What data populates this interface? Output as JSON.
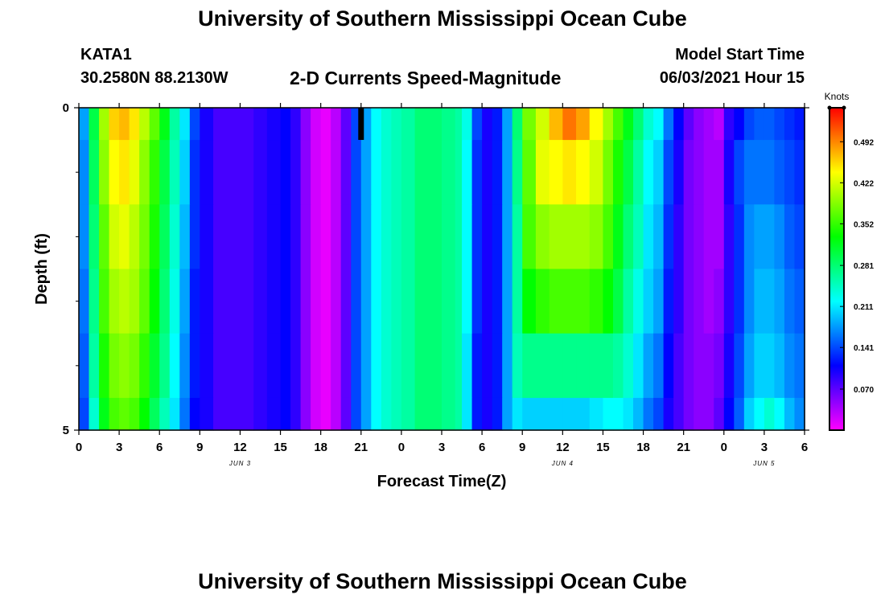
{
  "header": {
    "title": "University of Southern Mississippi Ocean Cube",
    "station": "KATA1",
    "coordinates": "30.2580N  88.2130W",
    "chart_title": "2-D Currents Speed-Magnitude",
    "model_start_label": "Model Start Time",
    "model_start_value": "06/03/2021 Hour 15"
  },
  "footer": {
    "title": "University of Southern Mississippi Ocean Cube"
  },
  "chart_data": {
    "type": "heatmap",
    "title": "2-D Currents Speed-Magnitude",
    "xlabel": "Forecast Time(Z)",
    "ylabel": "Depth (ft)",
    "x_hours_from_jun3_00z": [
      0,
      0.75,
      1.5,
      2.25,
      3,
      3.75,
      4.5,
      5.25,
      6,
      6.75,
      7.5,
      8.25,
      9,
      10,
      11,
      12,
      13,
      14,
      15,
      15.75,
      16.5,
      17.25,
      18,
      18.75,
      19.5,
      20.25,
      21,
      21.75,
      22.5,
      23.25,
      24,
      25,
      26,
      27,
      28,
      28.5,
      29.25,
      30,
      30.75,
      31.5,
      32.25,
      33,
      34,
      35,
      36,
      37,
      38,
      39,
      39.75,
      40.5,
      41.25,
      42,
      42.75,
      43.5,
      44.25,
      45,
      45.75,
      46.5,
      47.25,
      48,
      48.75,
      49.5,
      50.25,
      51,
      51.75,
      52.5,
      53.25,
      54
    ],
    "x_range": [
      0,
      54
    ],
    "x_ticks": [
      0,
      3,
      6,
      9,
      12,
      15,
      18,
      21,
      24,
      27,
      30,
      33,
      36,
      39,
      42,
      45,
      48,
      51,
      54
    ],
    "x_tick_labels": [
      "0",
      "3",
      "6",
      "9",
      "12",
      "15",
      "18",
      "21",
      "0",
      "3",
      "6",
      "9",
      "12",
      "15",
      "18",
      "21",
      "0",
      "3",
      "6"
    ],
    "day_labels": [
      {
        "label": "JUN 3",
        "hour": 12
      },
      {
        "label": "JUN 4",
        "hour": 36
      },
      {
        "label": "JUN 5",
        "hour": 51
      }
    ],
    "y_range": [
      0,
      5
    ],
    "y_ticks": [
      0,
      5
    ],
    "y_minor_ticks": [
      1,
      2,
      3,
      4
    ],
    "depth_levels": [
      0,
      0.5,
      1.5,
      2.5,
      3.5,
      4.5
    ],
    "speed_knots": [
      [
        0.18,
        0.3,
        0.4,
        0.46,
        0.47,
        0.45,
        0.41,
        0.37,
        0.32,
        0.26,
        0.21,
        0.14,
        0.1,
        0.08,
        0.08,
        0.08,
        0.09,
        0.1,
        0.11,
        0.09,
        0.05,
        0.02,
        0.01,
        0.03,
        0.07,
        0.14,
        0.18,
        0.22,
        0.24,
        0.25,
        0.26,
        0.28,
        0.28,
        0.27,
        0.26,
        0.23,
        0.14,
        0.1,
        0.12,
        0.18,
        0.28,
        0.38,
        0.42,
        0.47,
        0.5,
        0.48,
        0.44,
        0.4,
        0.36,
        0.32,
        0.28,
        0.24,
        0.22,
        0.16,
        0.11,
        0.07,
        0.05,
        0.04,
        0.03,
        0.09,
        0.11,
        0.14,
        0.15,
        0.15,
        0.14,
        0.13,
        0.12,
        0.11
      ],
      [
        0.17,
        0.29,
        0.39,
        0.44,
        0.45,
        0.43,
        0.39,
        0.35,
        0.3,
        0.25,
        0.2,
        0.13,
        0.1,
        0.08,
        0.08,
        0.08,
        0.09,
        0.1,
        0.11,
        0.09,
        0.05,
        0.02,
        0.01,
        0.03,
        0.07,
        0.14,
        0.18,
        0.22,
        0.24,
        0.25,
        0.26,
        0.28,
        0.28,
        0.27,
        0.26,
        0.22,
        0.13,
        0.1,
        0.12,
        0.18,
        0.27,
        0.37,
        0.43,
        0.44,
        0.45,
        0.44,
        0.42,
        0.38,
        0.34,
        0.3,
        0.26,
        0.22,
        0.2,
        0.14,
        0.1,
        0.06,
        0.05,
        0.04,
        0.04,
        0.1,
        0.14,
        0.16,
        0.16,
        0.16,
        0.15,
        0.14,
        0.13,
        0.12
      ],
      [
        0.17,
        0.28,
        0.37,
        0.42,
        0.43,
        0.41,
        0.38,
        0.34,
        0.29,
        0.24,
        0.19,
        0.13,
        0.1,
        0.08,
        0.08,
        0.08,
        0.09,
        0.1,
        0.11,
        0.09,
        0.05,
        0.02,
        0.01,
        0.03,
        0.07,
        0.14,
        0.18,
        0.22,
        0.24,
        0.25,
        0.26,
        0.28,
        0.28,
        0.27,
        0.26,
        0.22,
        0.13,
        0.1,
        0.12,
        0.18,
        0.26,
        0.36,
        0.39,
        0.4,
        0.4,
        0.4,
        0.39,
        0.36,
        0.32,
        0.28,
        0.25,
        0.21,
        0.19,
        0.13,
        0.09,
        0.06,
        0.05,
        0.04,
        0.04,
        0.09,
        0.13,
        0.17,
        0.18,
        0.18,
        0.17,
        0.15,
        0.14,
        0.13
      ],
      [
        0.16,
        0.27,
        0.36,
        0.4,
        0.41,
        0.4,
        0.37,
        0.33,
        0.28,
        0.23,
        0.18,
        0.12,
        0.1,
        0.08,
        0.08,
        0.08,
        0.09,
        0.1,
        0.11,
        0.09,
        0.05,
        0.02,
        0.01,
        0.03,
        0.07,
        0.14,
        0.18,
        0.22,
        0.24,
        0.25,
        0.26,
        0.28,
        0.28,
        0.27,
        0.26,
        0.22,
        0.13,
        0.1,
        0.12,
        0.18,
        0.26,
        0.33,
        0.35,
        0.36,
        0.36,
        0.36,
        0.35,
        0.33,
        0.3,
        0.26,
        0.23,
        0.2,
        0.18,
        0.12,
        0.09,
        0.06,
        0.05,
        0.04,
        0.05,
        0.09,
        0.13,
        0.17,
        0.19,
        0.19,
        0.18,
        0.16,
        0.15,
        0.14
      ],
      [
        0.15,
        0.26,
        0.34,
        0.38,
        0.39,
        0.38,
        0.35,
        0.31,
        0.27,
        0.22,
        0.17,
        0.12,
        0.1,
        0.08,
        0.08,
        0.08,
        0.09,
        0.1,
        0.11,
        0.09,
        0.05,
        0.02,
        0.01,
        0.03,
        0.07,
        0.14,
        0.18,
        0.22,
        0.24,
        0.25,
        0.26,
        0.28,
        0.28,
        0.27,
        0.26,
        0.21,
        0.12,
        0.1,
        0.12,
        0.18,
        0.25,
        0.27,
        0.27,
        0.27,
        0.27,
        0.27,
        0.27,
        0.27,
        0.26,
        0.24,
        0.21,
        0.18,
        0.16,
        0.11,
        0.08,
        0.06,
        0.05,
        0.05,
        0.06,
        0.1,
        0.14,
        0.18,
        0.2,
        0.2,
        0.19,
        0.17,
        0.16,
        0.15
      ],
      [
        0.14,
        0.24,
        0.32,
        0.36,
        0.37,
        0.36,
        0.33,
        0.29,
        0.25,
        0.21,
        0.16,
        0.11,
        0.1,
        0.08,
        0.08,
        0.08,
        0.09,
        0.1,
        0.11,
        0.09,
        0.05,
        0.02,
        0.01,
        0.03,
        0.07,
        0.14,
        0.18,
        0.22,
        0.24,
        0.25,
        0.26,
        0.28,
        0.28,
        0.27,
        0.26,
        0.21,
        0.12,
        0.1,
        0.12,
        0.18,
        0.21,
        0.2,
        0.2,
        0.2,
        0.2,
        0.2,
        0.21,
        0.22,
        0.22,
        0.21,
        0.19,
        0.16,
        0.14,
        0.1,
        0.08,
        0.06,
        0.05,
        0.05,
        0.07,
        0.11,
        0.15,
        0.2,
        0.22,
        0.24,
        0.22,
        0.19,
        0.17,
        0.16
      ]
    ],
    "current_time_marker_hour": 21,
    "colorbar": {
      "label": "Knots",
      "range": [
        0,
        0.55
      ],
      "tick_values": [
        0.07,
        0.141,
        0.211,
        0.281,
        0.352,
        0.422,
        0.492
      ],
      "tick_labels": [
        "0.070",
        "0.141",
        "0.211",
        "0.281",
        "0.352",
        "0.422",
        "0.492"
      ]
    }
  }
}
